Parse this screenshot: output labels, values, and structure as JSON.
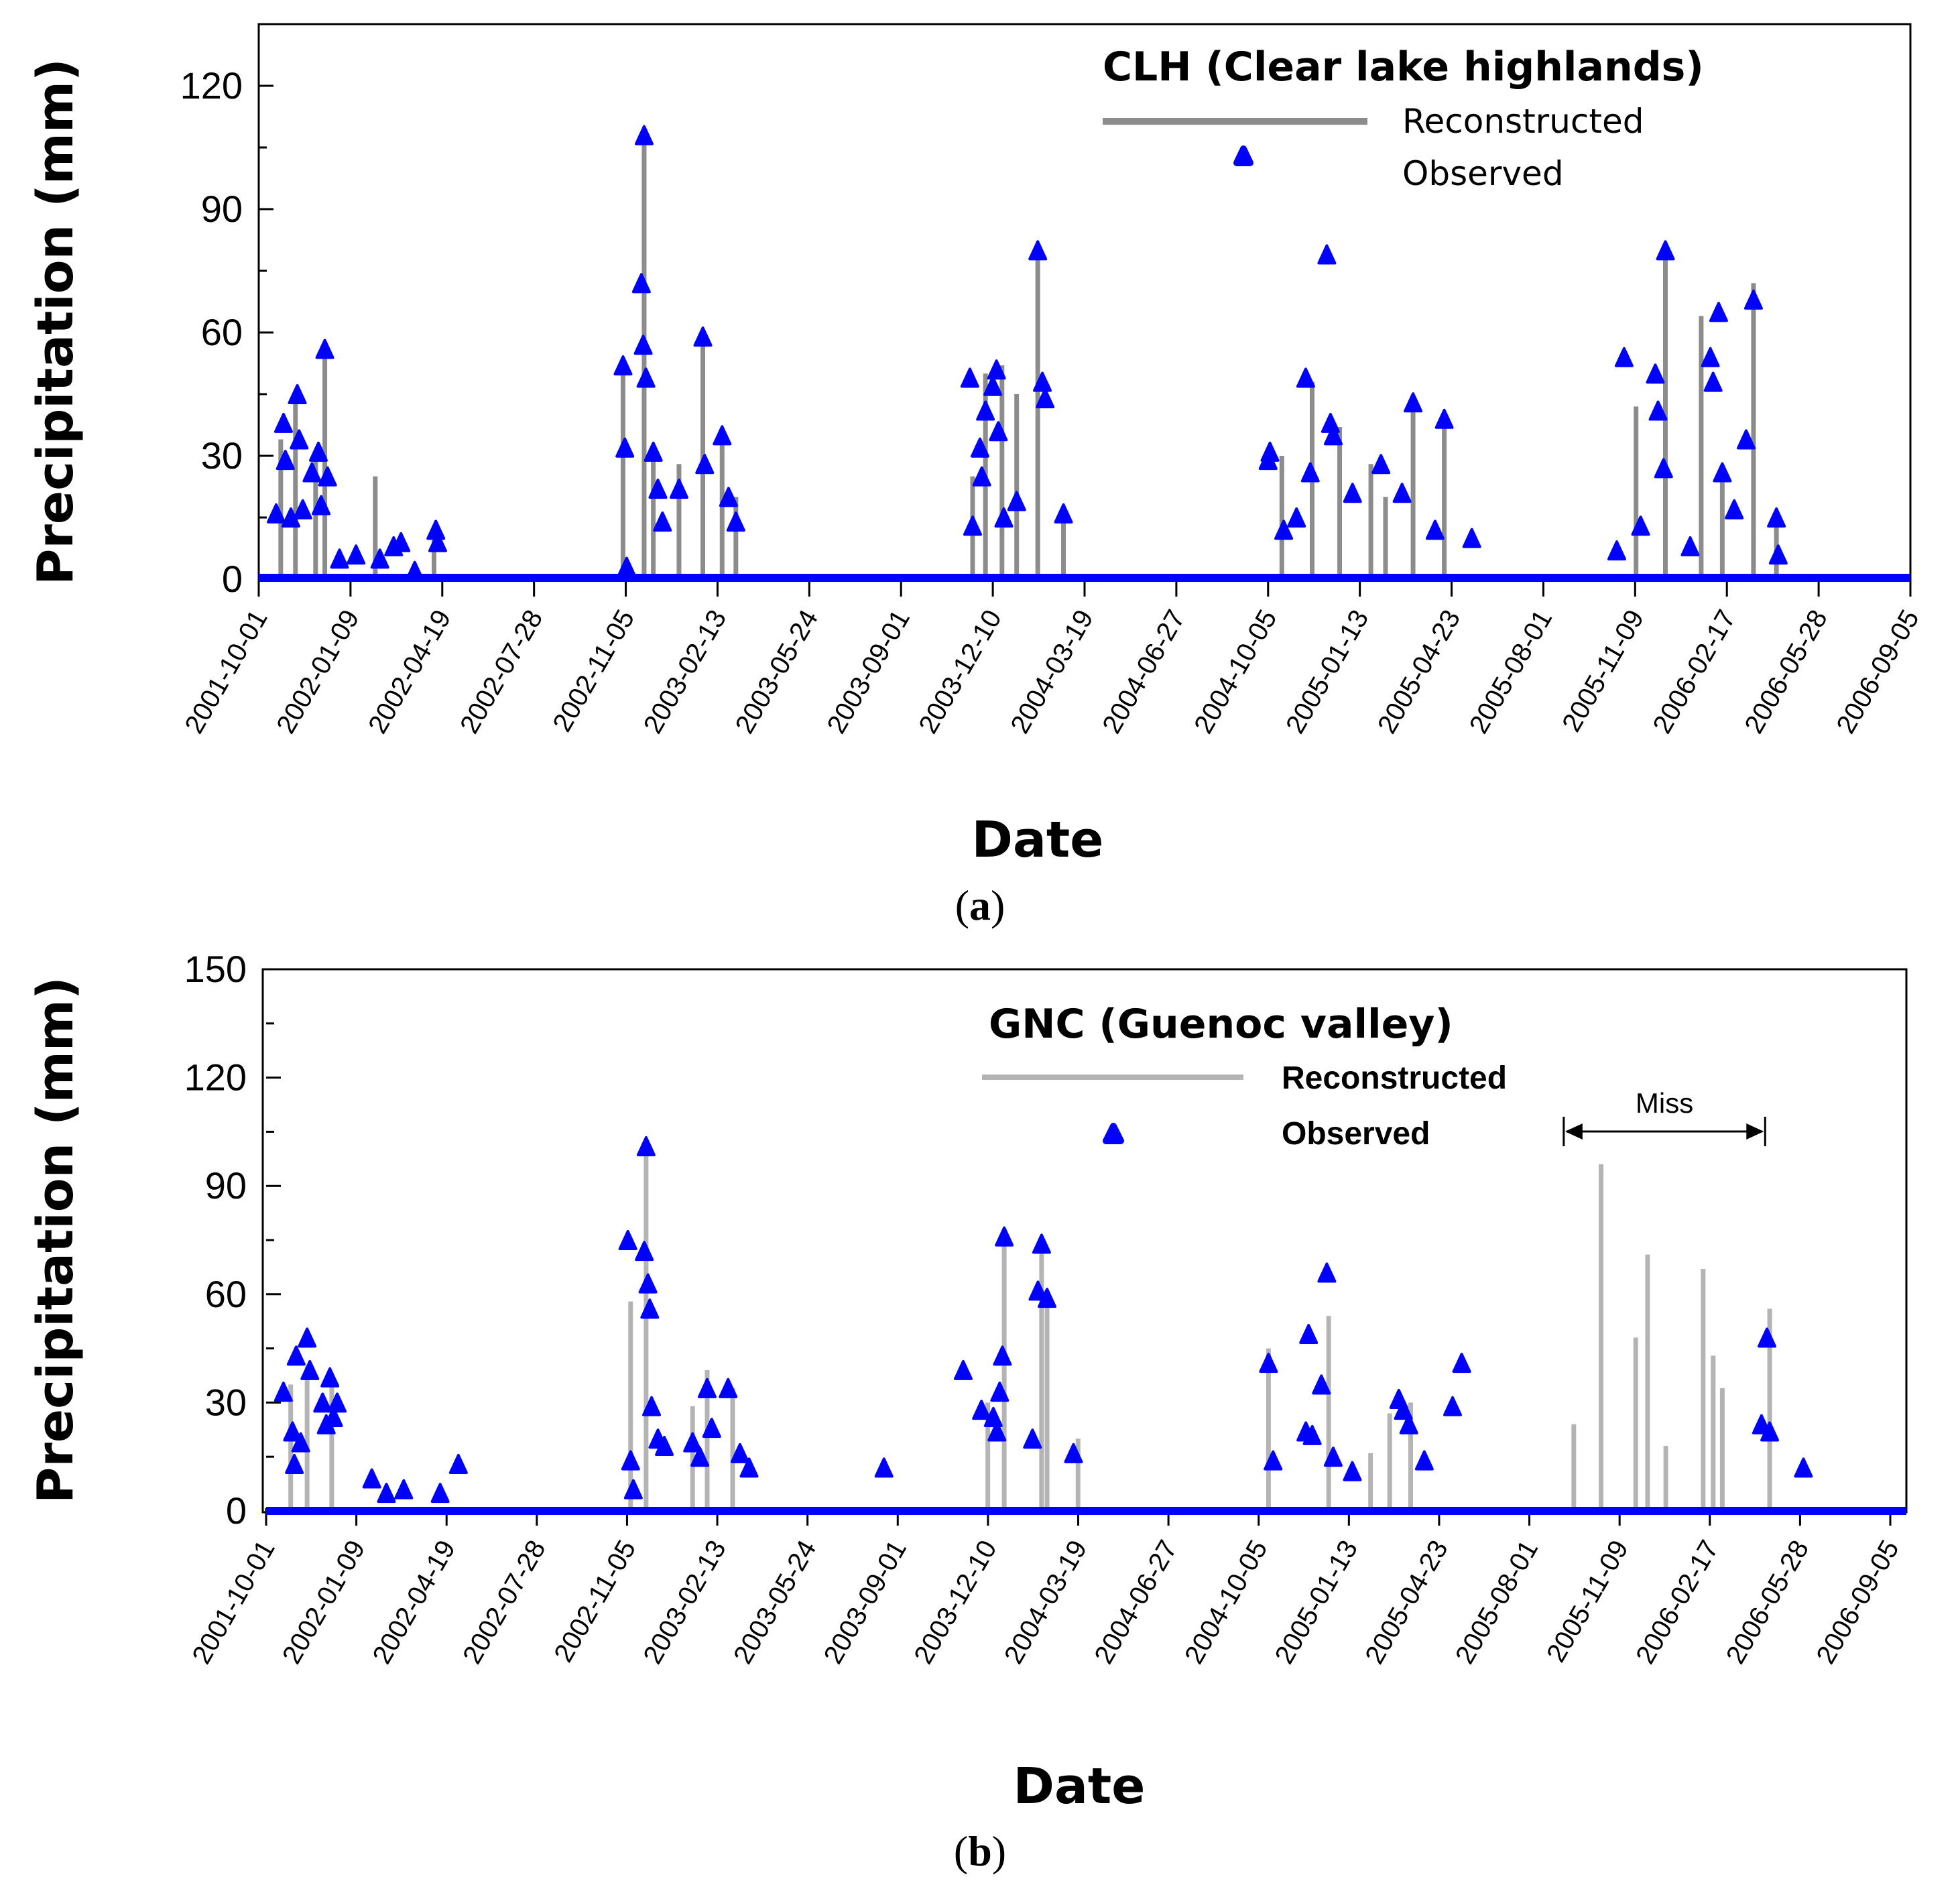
{
  "x_ticks": [
    "2001-10-01",
    "2002-01-09",
    "2002-04-19",
    "2002-07-28",
    "2002-11-05",
    "2003-02-13",
    "2003-05-24",
    "2003-09-01",
    "2003-12-10",
    "2004-03-19",
    "2004-06-27",
    "2004-10-05",
    "2005-01-13",
    "2005-04-23",
    "2005-08-01",
    "2005-11-09",
    "2006-02-17",
    "2006-05-28",
    "2006-09-05"
  ],
  "chart_data": [
    {
      "panel": "a",
      "type": "line",
      "title": "CLH (Clear lake highlands)",
      "xlabel": "Date",
      "ylabel": "Precipitation (mm)",
      "xlim": [
        "2001-10-01",
        "2006-09-05"
      ],
      "ylim": [
        0,
        135
      ],
      "yticks": [
        0,
        30,
        60,
        90,
        120
      ],
      "legend": "top-right",
      "legend_entries": [
        "Reconstructed",
        "Observed"
      ],
      "series": [
        {
          "name": "Reconstructed",
          "style": "line",
          "color": "#8c8c8c",
          "points": [
            [
              "2001-10-25",
              34
            ],
            [
              "2001-11-10",
              45
            ],
            [
              "2001-12-02",
              30
            ],
            [
              "2001-12-12",
              56
            ],
            [
              "2002-02-05",
              25
            ],
            [
              "2002-04-10",
              12
            ],
            [
              "2002-11-02",
              52
            ],
            [
              "2002-11-25",
              107
            ],
            [
              "2002-12-05",
              31
            ],
            [
              "2003-01-02",
              28
            ],
            [
              "2003-01-28",
              59
            ],
            [
              "2003-02-18",
              33
            ],
            [
              "2003-03-05",
              20
            ],
            [
              "2003-11-18",
              25
            ],
            [
              "2003-12-02",
              50
            ],
            [
              "2003-12-20",
              52
            ],
            [
              "2004-01-05",
              45
            ],
            [
              "2004-01-28",
              80
            ],
            [
              "2004-02-25",
              16
            ],
            [
              "2004-10-20",
              30
            ],
            [
              "2004-11-22",
              48
            ],
            [
              "2004-12-22",
              37
            ],
            [
              "2005-01-25",
              28
            ],
            [
              "2005-02-10",
              20
            ],
            [
              "2005-03-12",
              43
            ],
            [
              "2005-04-15",
              38
            ],
            [
              "2005-11-10",
              42
            ],
            [
              "2005-12-12",
              79
            ],
            [
              "2006-01-20",
              64
            ],
            [
              "2006-02-12",
              26
            ],
            [
              "2006-03-18",
              72
            ],
            [
              "2006-04-12",
              15
            ]
          ]
        },
        {
          "name": "Observed",
          "style": "marker-triangle",
          "color": "#0000ff",
          "points": [
            [
              "2001-10-20",
              16
            ],
            [
              "2001-10-28",
              38
            ],
            [
              "2001-10-30",
              29
            ],
            [
              "2001-11-05",
              15
            ],
            [
              "2001-11-12",
              45
            ],
            [
              "2001-11-14",
              34
            ],
            [
              "2001-11-18",
              17
            ],
            [
              "2001-11-28",
              26
            ],
            [
              "2001-12-05",
              31
            ],
            [
              "2001-12-08",
              18
            ],
            [
              "2001-12-12",
              56
            ],
            [
              "2001-12-15",
              25
            ],
            [
              "2001-12-28",
              5
            ],
            [
              "2002-01-15",
              6
            ],
            [
              "2002-02-10",
              5
            ],
            [
              "2002-02-25",
              8
            ],
            [
              "2002-03-05",
              9
            ],
            [
              "2002-03-20",
              2
            ],
            [
              "2002-04-12",
              12
            ],
            [
              "2002-04-14",
              9
            ],
            [
              "2002-11-02",
              52
            ],
            [
              "2002-11-04",
              32
            ],
            [
              "2002-11-06",
              3
            ],
            [
              "2002-11-22",
              72
            ],
            [
              "2002-11-24",
              57
            ],
            [
              "2002-11-25",
              108
            ],
            [
              "2002-11-27",
              49
            ],
            [
              "2002-12-05",
              31
            ],
            [
              "2002-12-10",
              22
            ],
            [
              "2002-12-15",
              14
            ],
            [
              "2003-01-02",
              22
            ],
            [
              "2003-01-28",
              59
            ],
            [
              "2003-01-30",
              28
            ],
            [
              "2003-02-18",
              35
            ],
            [
              "2003-02-25",
              20
            ],
            [
              "2003-03-05",
              14
            ],
            [
              "2003-11-15",
              49
            ],
            [
              "2003-11-18",
              13
            ],
            [
              "2003-11-26",
              32
            ],
            [
              "2003-11-28",
              25
            ],
            [
              "2003-12-02",
              41
            ],
            [
              "2003-12-10",
              47
            ],
            [
              "2003-12-14",
              51
            ],
            [
              "2003-12-16",
              36
            ],
            [
              "2003-12-22",
              15
            ],
            [
              "2004-01-05",
              19
            ],
            [
              "2004-01-28",
              80
            ],
            [
              "2004-02-02",
              48
            ],
            [
              "2004-02-05",
              44
            ],
            [
              "2004-02-25",
              16
            ],
            [
              "2004-10-05",
              29
            ],
            [
              "2004-10-07",
              31
            ],
            [
              "2004-10-22",
              12
            ],
            [
              "2004-11-05",
              15
            ],
            [
              "2004-11-15",
              49
            ],
            [
              "2004-11-20",
              26
            ],
            [
              "2004-12-08",
              79
            ],
            [
              "2004-12-12",
              38
            ],
            [
              "2004-12-15",
              35
            ],
            [
              "2005-01-05",
              21
            ],
            [
              "2005-02-05",
              28
            ],
            [
              "2005-02-28",
              21
            ],
            [
              "2005-03-12",
              43
            ],
            [
              "2005-04-05",
              12
            ],
            [
              "2005-04-15",
              39
            ],
            [
              "2005-05-15",
              10
            ],
            [
              "2005-10-20",
              7
            ],
            [
              "2005-10-28",
              54
            ],
            [
              "2005-11-15",
              13
            ],
            [
              "2005-12-01",
              50
            ],
            [
              "2005-12-04",
              41
            ],
            [
              "2005-12-10",
              27
            ],
            [
              "2005-12-12",
              80
            ],
            [
              "2006-01-08",
              8
            ],
            [
              "2006-01-30",
              54
            ],
            [
              "2006-02-02",
              48
            ],
            [
              "2006-02-08",
              65
            ],
            [
              "2006-02-12",
              26
            ],
            [
              "2006-02-25",
              17
            ],
            [
              "2006-03-10",
              34
            ],
            [
              "2006-03-18",
              68
            ],
            [
              "2006-04-12",
              15
            ],
            [
              "2006-04-14",
              6
            ]
          ]
        }
      ]
    },
    {
      "panel": "b",
      "type": "line",
      "title": "GNC (Guenoc valley)",
      "xlabel": "Date",
      "ylabel": "Precipitation (mm)",
      "xlim": [
        "2001-10-01",
        "2006-09-05"
      ],
      "ylim": [
        0,
        150
      ],
      "yticks": [
        0,
        30,
        60,
        90,
        120,
        150
      ],
      "legend": "top-right",
      "legend_entries": [
        "Reconstructed",
        "Observed"
      ],
      "annotation": {
        "text": "Miss",
        "from": "2005-08-25",
        "to": "2006-04-03"
      },
      "series": [
        {
          "name": "Reconstructed",
          "style": "line",
          "color": "#b4b4b4",
          "points": [
            [
              "2001-10-28",
              35
            ],
            [
              "2001-11-15",
              40
            ],
            [
              "2001-12-12",
              38
            ],
            [
              "2002-11-05",
              58
            ],
            [
              "2002-11-22",
              100
            ],
            [
              "2003-01-12",
              29
            ],
            [
              "2003-01-28",
              39
            ],
            [
              "2003-02-25",
              34
            ],
            [
              "2003-12-02",
              30
            ],
            [
              "2003-12-20",
              76
            ],
            [
              "2004-01-30",
              74
            ],
            [
              "2004-02-05",
              60
            ],
            [
              "2004-03-10",
              20
            ],
            [
              "2004-10-05",
              45
            ],
            [
              "2004-12-10",
              54
            ],
            [
              "2005-01-25",
              16
            ],
            [
              "2005-02-15",
              27
            ],
            [
              "2005-03-10",
              30
            ],
            [
              "2005-09-05",
              24
            ],
            [
              "2005-10-05",
              96
            ],
            [
              "2005-11-12",
              48
            ],
            [
              "2005-11-25",
              71
            ],
            [
              "2005-12-15",
              18
            ],
            [
              "2006-01-25",
              67
            ],
            [
              "2006-02-05",
              43
            ],
            [
              "2006-02-15",
              34
            ],
            [
              "2006-04-08",
              56
            ]
          ]
        },
        {
          "name": "Observed",
          "style": "marker-triangle",
          "color": "#0000ff",
          "points": [
            [
              "2001-10-20",
              33
            ],
            [
              "2001-10-30",
              22
            ],
            [
              "2001-11-01",
              13
            ],
            [
              "2001-11-03",
              43
            ],
            [
              "2001-11-08",
              19
            ],
            [
              "2001-11-15",
              48
            ],
            [
              "2001-11-18",
              39
            ],
            [
              "2001-12-02",
              30
            ],
            [
              "2001-12-06",
              24
            ],
            [
              "2001-12-10",
              37
            ],
            [
              "2001-12-14",
              26
            ],
            [
              "2001-12-18",
              30
            ],
            [
              "2002-01-25",
              9
            ],
            [
              "2002-02-10",
              5
            ],
            [
              "2002-03-01",
              6
            ],
            [
              "2002-04-10",
              5
            ],
            [
              "2002-04-30",
              13
            ],
            [
              "2002-11-02",
              75
            ],
            [
              "2002-11-05",
              14
            ],
            [
              "2002-11-08",
              6
            ],
            [
              "2002-11-20",
              72
            ],
            [
              "2002-11-22",
              101
            ],
            [
              "2002-11-24",
              63
            ],
            [
              "2002-11-26",
              56
            ],
            [
              "2002-11-28",
              29
            ],
            [
              "2002-12-05",
              20
            ],
            [
              "2002-12-12",
              18
            ],
            [
              "2003-01-12",
              19
            ],
            [
              "2003-01-20",
              15
            ],
            [
              "2003-01-28",
              34
            ],
            [
              "2003-02-02",
              23
            ],
            [
              "2003-02-20",
              34
            ],
            [
              "2003-03-05",
              16
            ],
            [
              "2003-03-15",
              12
            ],
            [
              "2003-08-10",
              12
            ],
            [
              "2003-11-05",
              39
            ],
            [
              "2003-11-25",
              28
            ],
            [
              "2003-12-08",
              26
            ],
            [
              "2003-12-12",
              22
            ],
            [
              "2003-12-15",
              33
            ],
            [
              "2003-12-18",
              43
            ],
            [
              "2003-12-20",
              76
            ],
            [
              "2004-01-20",
              20
            ],
            [
              "2004-01-26",
              61
            ],
            [
              "2004-01-30",
              74
            ],
            [
              "2004-02-05",
              59
            ],
            [
              "2004-03-05",
              16
            ],
            [
              "2004-10-05",
              41
            ],
            [
              "2004-10-10",
              14
            ],
            [
              "2004-11-15",
              22
            ],
            [
              "2004-11-18",
              49
            ],
            [
              "2004-11-22",
              21
            ],
            [
              "2004-12-02",
              35
            ],
            [
              "2004-12-08",
              66
            ],
            [
              "2004-12-15",
              15
            ],
            [
              "2005-01-05",
              11
            ],
            [
              "2005-02-25",
              31
            ],
            [
              "2005-03-02",
              28
            ],
            [
              "2005-03-08",
              24
            ],
            [
              "2005-03-25",
              14
            ],
            [
              "2005-04-25",
              29
            ],
            [
              "2005-05-05",
              41
            ],
            [
              "2006-03-30",
              24
            ],
            [
              "2006-04-05",
              48
            ],
            [
              "2006-04-08",
              22
            ],
            [
              "2006-05-15",
              12
            ]
          ]
        }
      ]
    }
  ],
  "panel_labels": {
    "a": {
      "open": "(",
      "letter": "a",
      "close": ")"
    },
    "b": {
      "open": "(",
      "letter": "b",
      "close": ")"
    }
  }
}
